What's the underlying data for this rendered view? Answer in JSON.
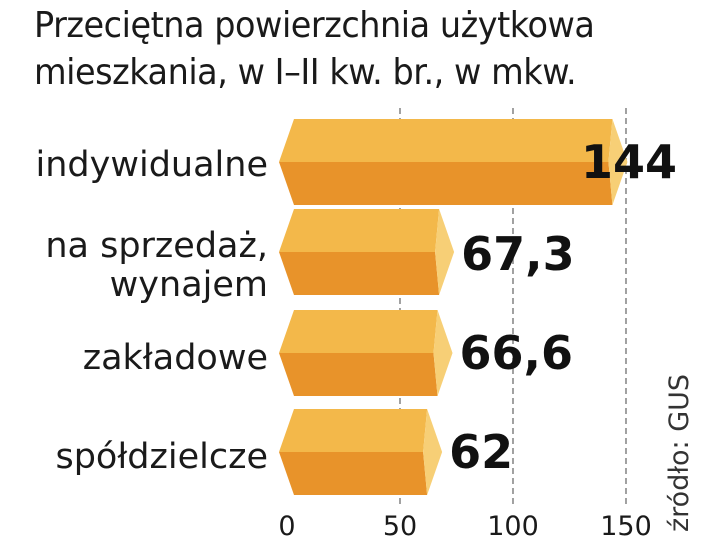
{
  "chart_data": {
    "type": "bar",
    "orientation": "horizontal",
    "title": "Przeciętna powierzchnia użytkowa mieszkania, w I–II kw. br., w mkw.",
    "categories": [
      [
        "indywidualne"
      ],
      [
        "na sprzedaż,",
        "wynajem"
      ],
      [
        "zakładowe"
      ],
      [
        "spółdzielcze"
      ]
    ],
    "values": [
      144,
      67.3,
      66.6,
      62
    ],
    "value_labels": [
      "144",
      "67,3",
      "66,6",
      "62"
    ],
    "xlim": [
      0,
      150
    ],
    "xticks": [
      0,
      50,
      100,
      150
    ],
    "grid": "vertical dashed",
    "source": "źródło: GUS",
    "colors": {
      "bar_top": "#f3b84a",
      "bar_bottom": "#e8932a",
      "bar_cap": "#f7cf76",
      "text": "#1a1a1a",
      "grid": "#8a8a8a"
    }
  }
}
